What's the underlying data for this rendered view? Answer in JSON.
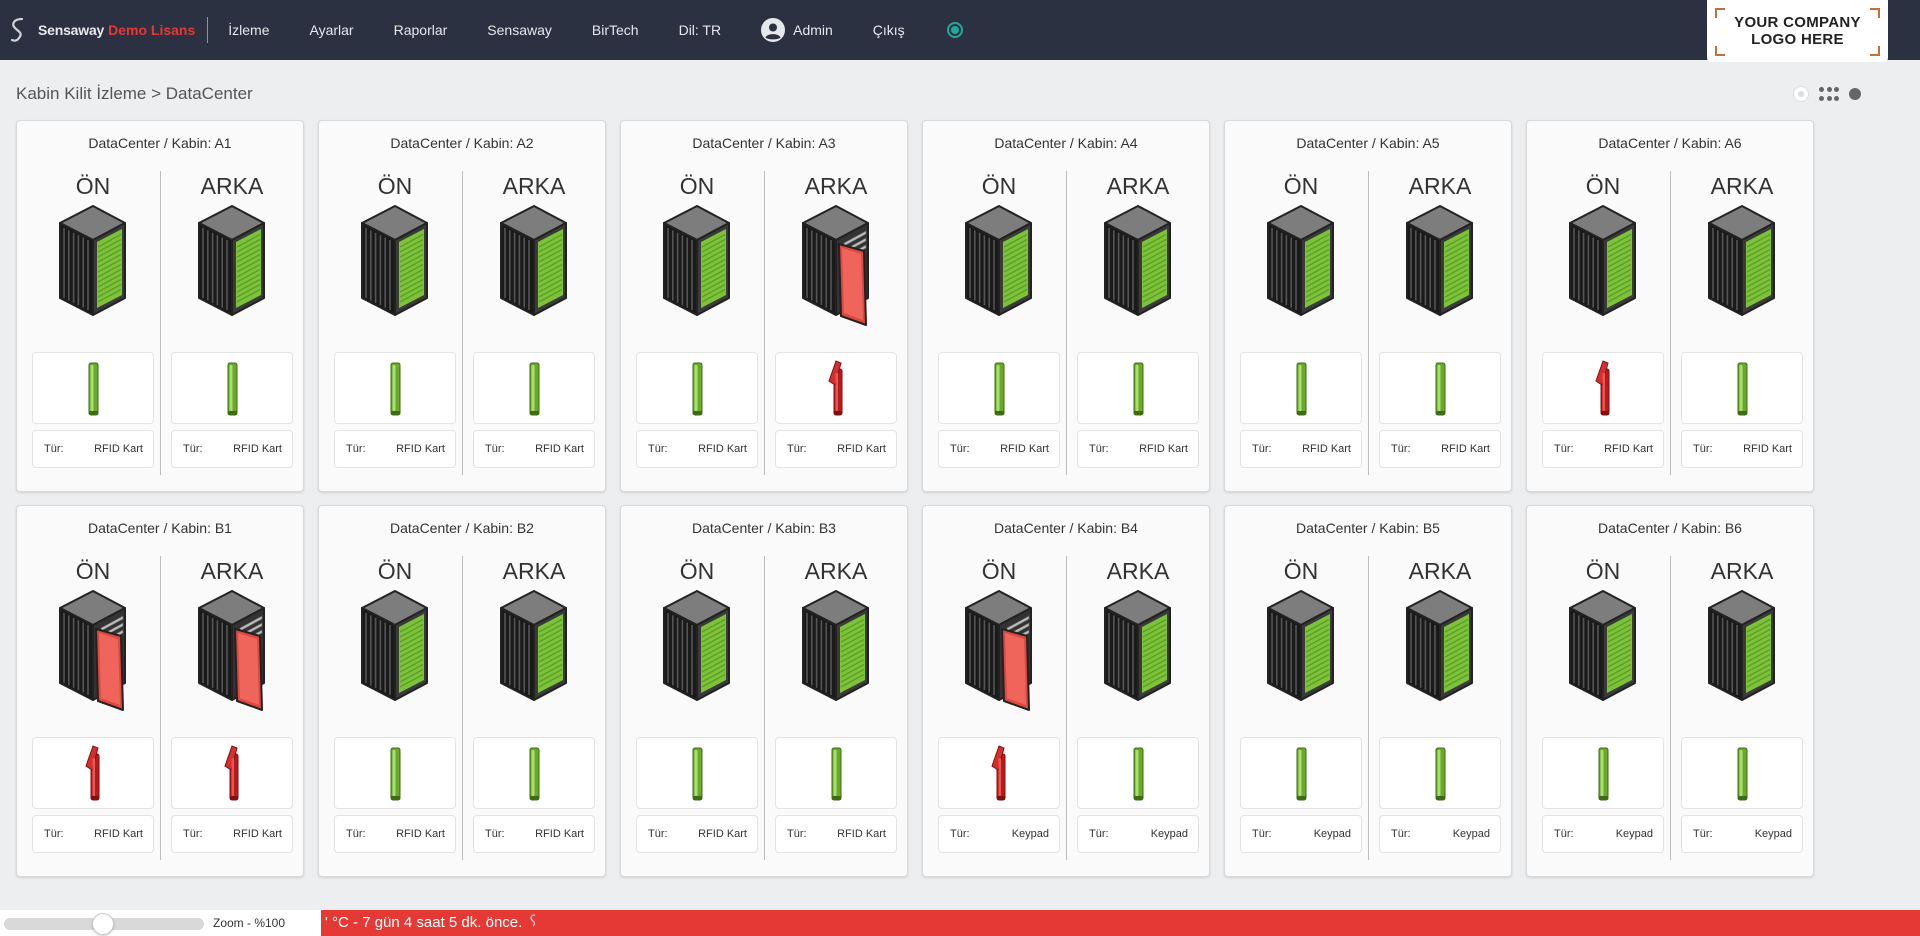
{
  "app": {
    "brand_name": "Sensaway",
    "brand_license": "Demo Lisans",
    "company_logo_text": "YOUR COMPANY\nLOGO HERE"
  },
  "nav": {
    "items": [
      {
        "key": "izleme",
        "label": "İzleme"
      },
      {
        "key": "ayarlar",
        "label": "Ayarlar"
      },
      {
        "key": "raporlar",
        "label": "Raporlar"
      },
      {
        "key": "sensaway",
        "label": "Sensaway"
      },
      {
        "key": "birtech",
        "label": "BirTech"
      },
      {
        "key": "dil",
        "label": "Dil: TR"
      }
    ],
    "admin_label": "Admin",
    "logout_label": "Çıkış"
  },
  "breadcrumb": "Kabin Kilit İzleme > DataCenter",
  "labels": {
    "front": "ÖN",
    "back": "ARKA",
    "type_label": "Tür:"
  },
  "colors": {
    "ok": "#7cc33a",
    "alert": "#e53935",
    "topbar": "#2b3140",
    "status": "#26a69a"
  },
  "cabinets": [
    {
      "title": "DataCenter / Kabin: A1",
      "front": {
        "state": "closed",
        "type": "RFID Kart"
      },
      "back": {
        "state": "closed",
        "type": "RFID Kart"
      }
    },
    {
      "title": "DataCenter / Kabin: A2",
      "front": {
        "state": "closed",
        "type": "RFID Kart"
      },
      "back": {
        "state": "closed",
        "type": "RFID Kart"
      }
    },
    {
      "title": "DataCenter / Kabin: A3",
      "front": {
        "state": "closed",
        "type": "RFID Kart"
      },
      "back": {
        "state": "open",
        "type": "RFID Kart"
      }
    },
    {
      "title": "DataCenter / Kabin: A4",
      "front": {
        "state": "closed",
        "type": "RFID Kart"
      },
      "back": {
        "state": "closed",
        "type": "RFID Kart"
      }
    },
    {
      "title": "DataCenter / Kabin: A5",
      "front": {
        "state": "closed",
        "type": "RFID Kart"
      },
      "back": {
        "state": "closed",
        "type": "RFID Kart"
      }
    },
    {
      "title": "DataCenter / Kabin: A6",
      "front": {
        "state": "unlocked",
        "type": "RFID Kart"
      },
      "back": {
        "state": "closed",
        "type": "RFID Kart"
      }
    },
    {
      "title": "DataCenter / Kabin: B1",
      "front": {
        "state": "open",
        "type": "RFID Kart"
      },
      "back": {
        "state": "open",
        "type": "RFID Kart"
      }
    },
    {
      "title": "DataCenter / Kabin: B2",
      "front": {
        "state": "closed",
        "type": "RFID Kart"
      },
      "back": {
        "state": "closed",
        "type": "RFID Kart"
      }
    },
    {
      "title": "DataCenter / Kabin: B3",
      "front": {
        "state": "closed",
        "type": "RFID Kart"
      },
      "back": {
        "state": "closed",
        "type": "RFID Kart"
      }
    },
    {
      "title": "DataCenter / Kabin: B4",
      "front": {
        "state": "open",
        "type": "Keypad"
      },
      "back": {
        "state": "closed",
        "type": "Keypad"
      }
    },
    {
      "title": "DataCenter / Kabin: B5",
      "front": {
        "state": "closed",
        "type": "Keypad"
      },
      "back": {
        "state": "closed",
        "type": "Keypad"
      }
    },
    {
      "title": "DataCenter / Kabin: B6",
      "front": {
        "state": "closed",
        "type": "Keypad"
      },
      "back": {
        "state": "closed",
        "type": "Keypad"
      }
    }
  ],
  "footer": {
    "zoom_label": "Zoom - %100",
    "zoom_percent": 100,
    "alert_text": "' °C - 7 gün 4 saat 5 dk. önce."
  }
}
